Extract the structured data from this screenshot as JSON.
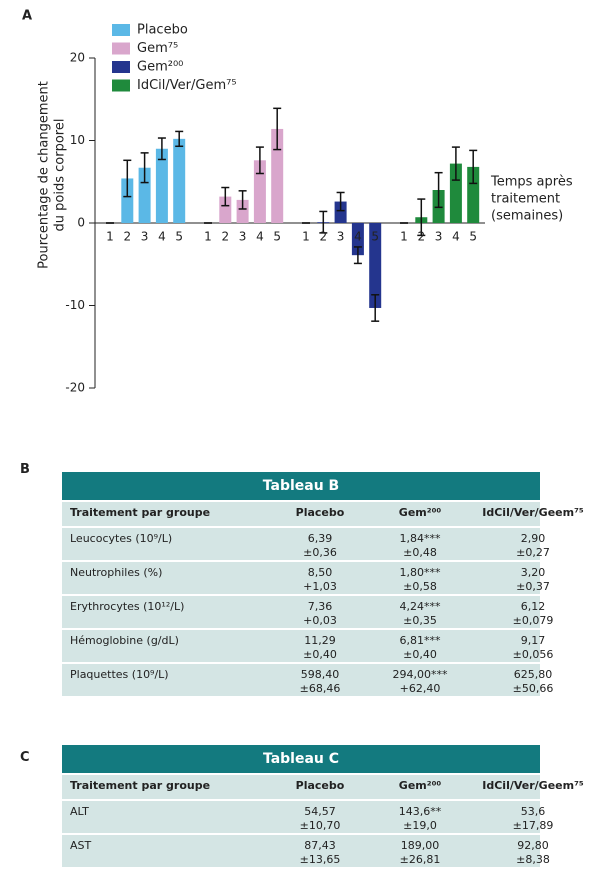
{
  "chart_data": {
    "type": "bar",
    "panel": "A",
    "ylabel": [
      "Pourcentage de changement",
      "du poids corporel"
    ],
    "xlabel": [
      "Temps après",
      "traitement",
      "(semaines)"
    ],
    "categories": [
      "1",
      "2",
      "3",
      "4",
      "5"
    ],
    "series": [
      {
        "name": "Placebo",
        "color": "#5bb8e6",
        "values": [
          0,
          5.4,
          6.7,
          9.0,
          10.2
        ],
        "errors": [
          0,
          2.2,
          1.8,
          1.3,
          0.9
        ]
      },
      {
        "name": "Gem⁷⁵",
        "color": "#d9a6cc",
        "values": [
          0,
          3.2,
          2.8,
          7.6,
          11.4
        ],
        "errors": [
          0,
          1.1,
          1.1,
          1.6,
          2.5
        ]
      },
      {
        "name": "Gem²⁰⁰",
        "color": "#24358e",
        "values": [
          0,
          0.1,
          2.6,
          -3.9,
          -10.3
        ],
        "errors": [
          0,
          1.3,
          1.1,
          1.0,
          1.6
        ]
      },
      {
        "name": "IdCil/Ver/Gem⁷⁵",
        "color": "#1f8a3c",
        "values": [
          0,
          0.7,
          4.0,
          7.2,
          6.8
        ],
        "errors": [
          0,
          2.2,
          2.1,
          2.0,
          2.0
        ]
      }
    ],
    "ylim": [
      -20,
      20
    ],
    "yticks": [
      -20,
      -10,
      0,
      10,
      20
    ],
    "grid": false,
    "legend": "top-left"
  },
  "tables": [
    {
      "panel": "B",
      "title": "Tableau B",
      "columns": [
        "Traitement par groupe",
        "Placebo",
        "Gem²⁰⁰",
        "IdCil/Ver/Geem⁷⁵"
      ],
      "rows": [
        [
          "Leucocytes (10⁹/L)",
          "6,39\n±0,36",
          "1,84***\n±0,48",
          "2,90\n±0,27"
        ],
        [
          "Neutrophiles (%)",
          "8,50\n+1,03",
          "1,80***\n±0,58",
          "3,20\n±0,37"
        ],
        [
          "Erythrocytes (10¹²/L)",
          "7,36\n+0,03",
          "4,24***\n±0,35",
          "6,12\n±0,079"
        ],
        [
          "Hémoglobine (g/dL)",
          "11,29\n±0,40",
          "6,81***\n±0,40",
          "9,17\n±0,056"
        ],
        [
          "Plaquettes (10⁹/L)",
          "598,40\n±68,46",
          "294,00***\n+62,40",
          "625,80\n±50,66"
        ]
      ]
    },
    {
      "panel": "C",
      "title": "Tableau C",
      "columns": [
        "Traitement par groupe",
        "Placebo",
        "Gem²⁰⁰",
        "IdCil/Ver/Geem⁷⁵"
      ],
      "rows": [
        [
          "ALT",
          "54,57\n±10,70",
          "143,6**\n±19,0",
          "53,6\n±17,89"
        ],
        [
          "AST",
          "87,43\n±13,65",
          "189,00\n±26,81",
          "92,80\n±8,38"
        ]
      ]
    }
  ]
}
